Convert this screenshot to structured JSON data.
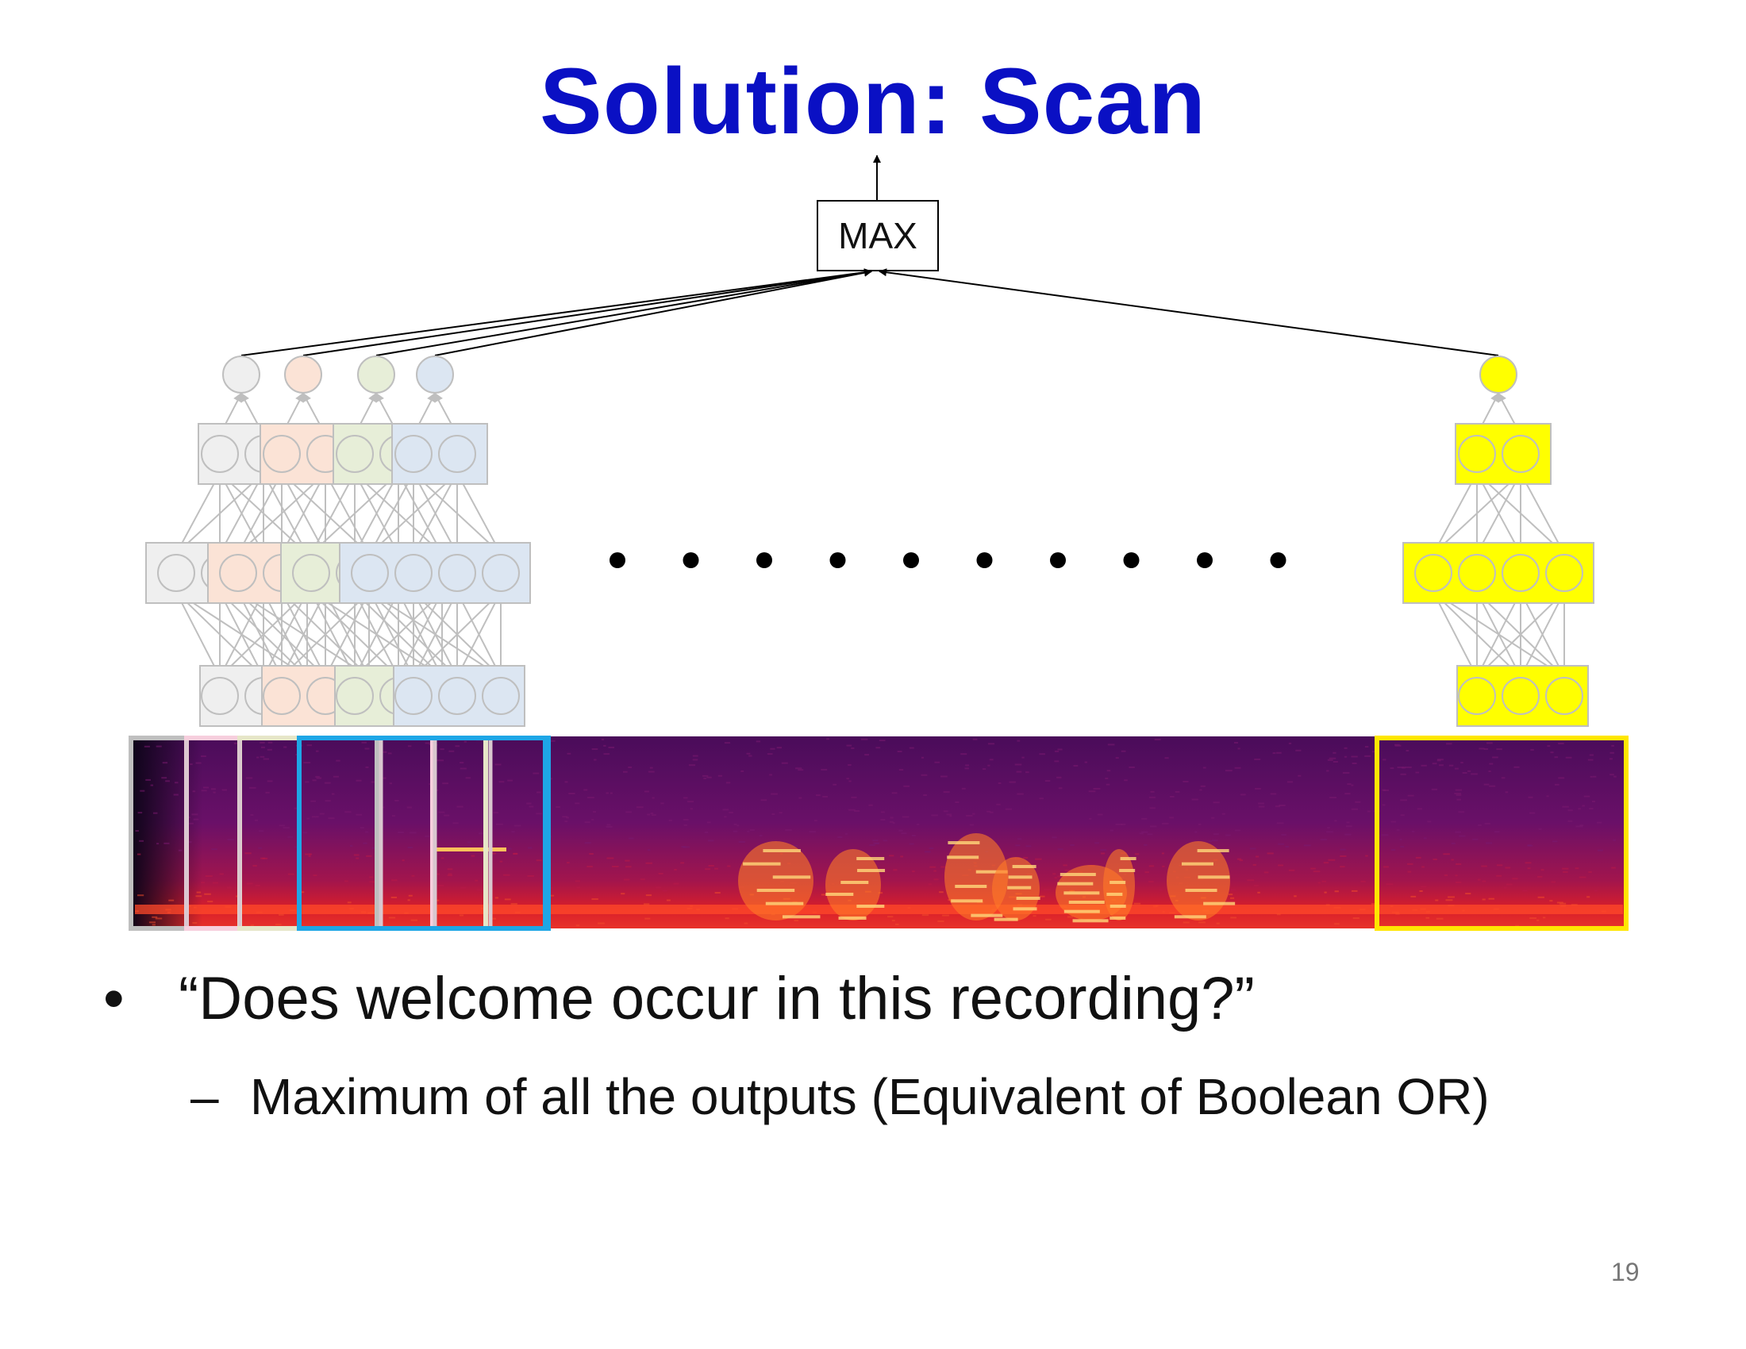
{
  "slide": {
    "title": "Solution: Scan",
    "bullet": "“Does welcome occur in this recording?”",
    "bullet_marker": "•",
    "subbullet": "Maximum of all the outputs (Equivalent of Boolean OR)",
    "subbullet_marker": "–",
    "page_number": "19"
  },
  "diagram": {
    "max_label": "MAX",
    "ellipsis_dots": 10,
    "colors": {
      "window_gray": "#efefef",
      "window_peach": "#fbe3d6",
      "window_green": "#e7eed8",
      "window_blue": "#dce6f2",
      "window_yellow": "#ffff00",
      "selection_blue": "#1ea6e6",
      "selection_yellow": "#ffe600",
      "neuron_stroke": "#bfbfbf",
      "spectrogram_bg": "#5a1060"
    }
  }
}
